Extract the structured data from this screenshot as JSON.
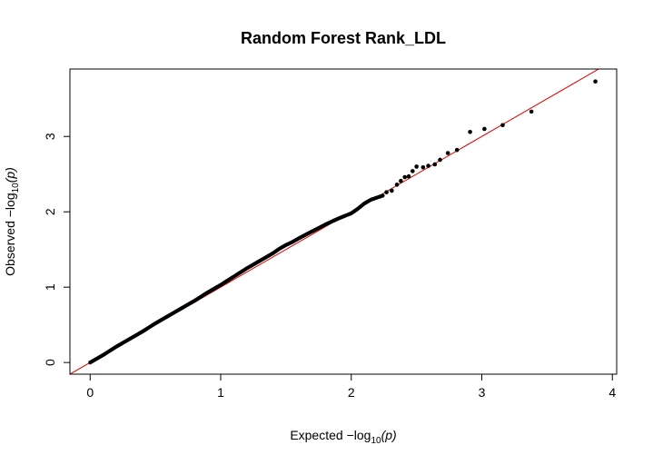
{
  "chart_data": {
    "type": "scatter",
    "title": "Random Forest Rank_LDL",
    "xlabel": {
      "prefix": "Expected  −log",
      "subscript": "10",
      "suffix": "(p)"
    },
    "ylabel": {
      "prefix": "Observed  −log",
      "subscript": "10",
      "suffix": "(p)"
    },
    "xlim": [
      -0.155,
      4.033
    ],
    "ylim": [
      -0.155,
      3.895
    ],
    "x_ticks": [
      "0",
      "1",
      "2",
      "3",
      "4"
    ],
    "y_ticks": [
      "0",
      "1",
      "2",
      "3"
    ],
    "x_tick_values": [
      0,
      1,
      2,
      3,
      4
    ],
    "y_tick_values": [
      0,
      1,
      2,
      3
    ],
    "grid": false,
    "reference_line": {
      "slope": 1,
      "intercept": 0,
      "color": "#e00000"
    },
    "point_color": "#000000",
    "dense_curve": [
      [
        0.0,
        0.0
      ],
      [
        0.1,
        0.1
      ],
      [
        0.2,
        0.21
      ],
      [
        0.3,
        0.31
      ],
      [
        0.4,
        0.41
      ],
      [
        0.5,
        0.52
      ],
      [
        0.6,
        0.62
      ],
      [
        0.7,
        0.72
      ],
      [
        0.8,
        0.82
      ],
      [
        0.9,
        0.93
      ],
      [
        1.0,
        1.03
      ],
      [
        1.1,
        1.14
      ],
      [
        1.2,
        1.25
      ],
      [
        1.3,
        1.35
      ],
      [
        1.4,
        1.45
      ],
      [
        1.45,
        1.51
      ],
      [
        1.5,
        1.56
      ],
      [
        1.55,
        1.6
      ],
      [
        1.6,
        1.65
      ],
      [
        1.7,
        1.74
      ],
      [
        1.8,
        1.83
      ],
      [
        1.9,
        1.91
      ],
      [
        2.0,
        1.98
      ],
      [
        2.05,
        2.04
      ],
      [
        2.1,
        2.11
      ],
      [
        2.15,
        2.16
      ],
      [
        2.2,
        2.19
      ],
      [
        2.25,
        2.22
      ]
    ],
    "tail_points": [
      [
        2.27,
        2.26
      ],
      [
        2.31,
        2.28
      ],
      [
        2.35,
        2.36
      ],
      [
        2.38,
        2.41
      ],
      [
        2.41,
        2.46
      ],
      [
        2.44,
        2.47
      ],
      [
        2.47,
        2.54
      ],
      [
        2.5,
        2.6
      ],
      [
        2.55,
        2.59
      ],
      [
        2.59,
        2.61
      ],
      [
        2.64,
        2.63
      ],
      [
        2.68,
        2.69
      ],
      [
        2.74,
        2.78
      ],
      [
        2.81,
        2.82
      ],
      [
        2.91,
        3.06
      ],
      [
        3.02,
        3.1
      ],
      [
        3.16,
        3.15
      ],
      [
        3.38,
        3.33
      ],
      [
        3.87,
        3.73
      ]
    ]
  }
}
